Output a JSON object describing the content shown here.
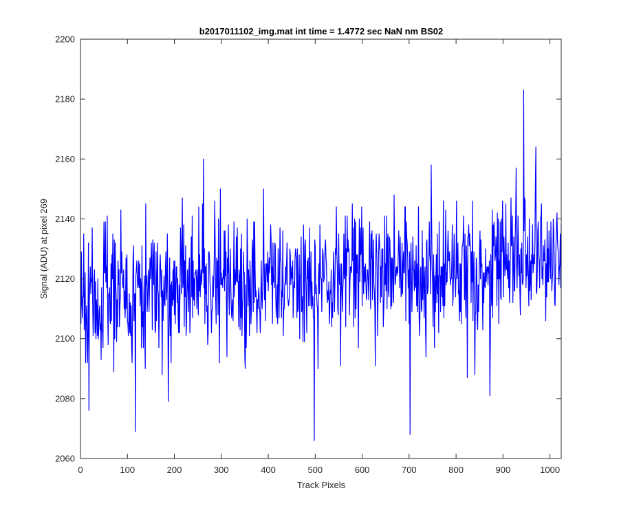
{
  "chart_data": {
    "type": "line",
    "title": "b2017011102_img.mat int time = 1.4772 sec  NaN nm BS02",
    "xlabel": "Track Pixels",
    "ylabel": "Signal (ADU) at pixel 269",
    "xlim": [
      0,
      1024
    ],
    "ylim": [
      2060,
      2200
    ],
    "x_ticks": [
      0,
      100,
      200,
      300,
      400,
      500,
      600,
      700,
      800,
      900,
      1000
    ],
    "y_ticks": [
      2060,
      2080,
      2100,
      2120,
      2140,
      2160,
      2180,
      2200
    ],
    "grid": false,
    "legend": "none",
    "series": [
      {
        "color": "#0000ff",
        "x_start": 1,
        "x_step": 1,
        "n_points": 1024,
        "baseline": {
          "x": [
            0,
            1024
          ],
          "y": [
            2113,
            2127
          ]
        },
        "noise_std_approx": 11,
        "notable_points": [
          {
            "x": 2,
            "y": 2129
          },
          {
            "x": 18,
            "y": 2076
          },
          {
            "x": 57,
            "y": 2141
          },
          {
            "x": 86,
            "y": 2143
          },
          {
            "x": 117,
            "y": 2069
          },
          {
            "x": 262,
            "y": 2160
          },
          {
            "x": 298,
            "y": 2150
          },
          {
            "x": 390,
            "y": 2150
          },
          {
            "x": 498,
            "y": 2066
          },
          {
            "x": 747,
            "y": 2158
          },
          {
            "x": 702,
            "y": 2068
          },
          {
            "x": 872,
            "y": 2081
          },
          {
            "x": 928,
            "y": 2157
          },
          {
            "x": 944,
            "y": 2183
          },
          {
            "x": 970,
            "y": 2164
          }
        ]
      }
    ]
  }
}
